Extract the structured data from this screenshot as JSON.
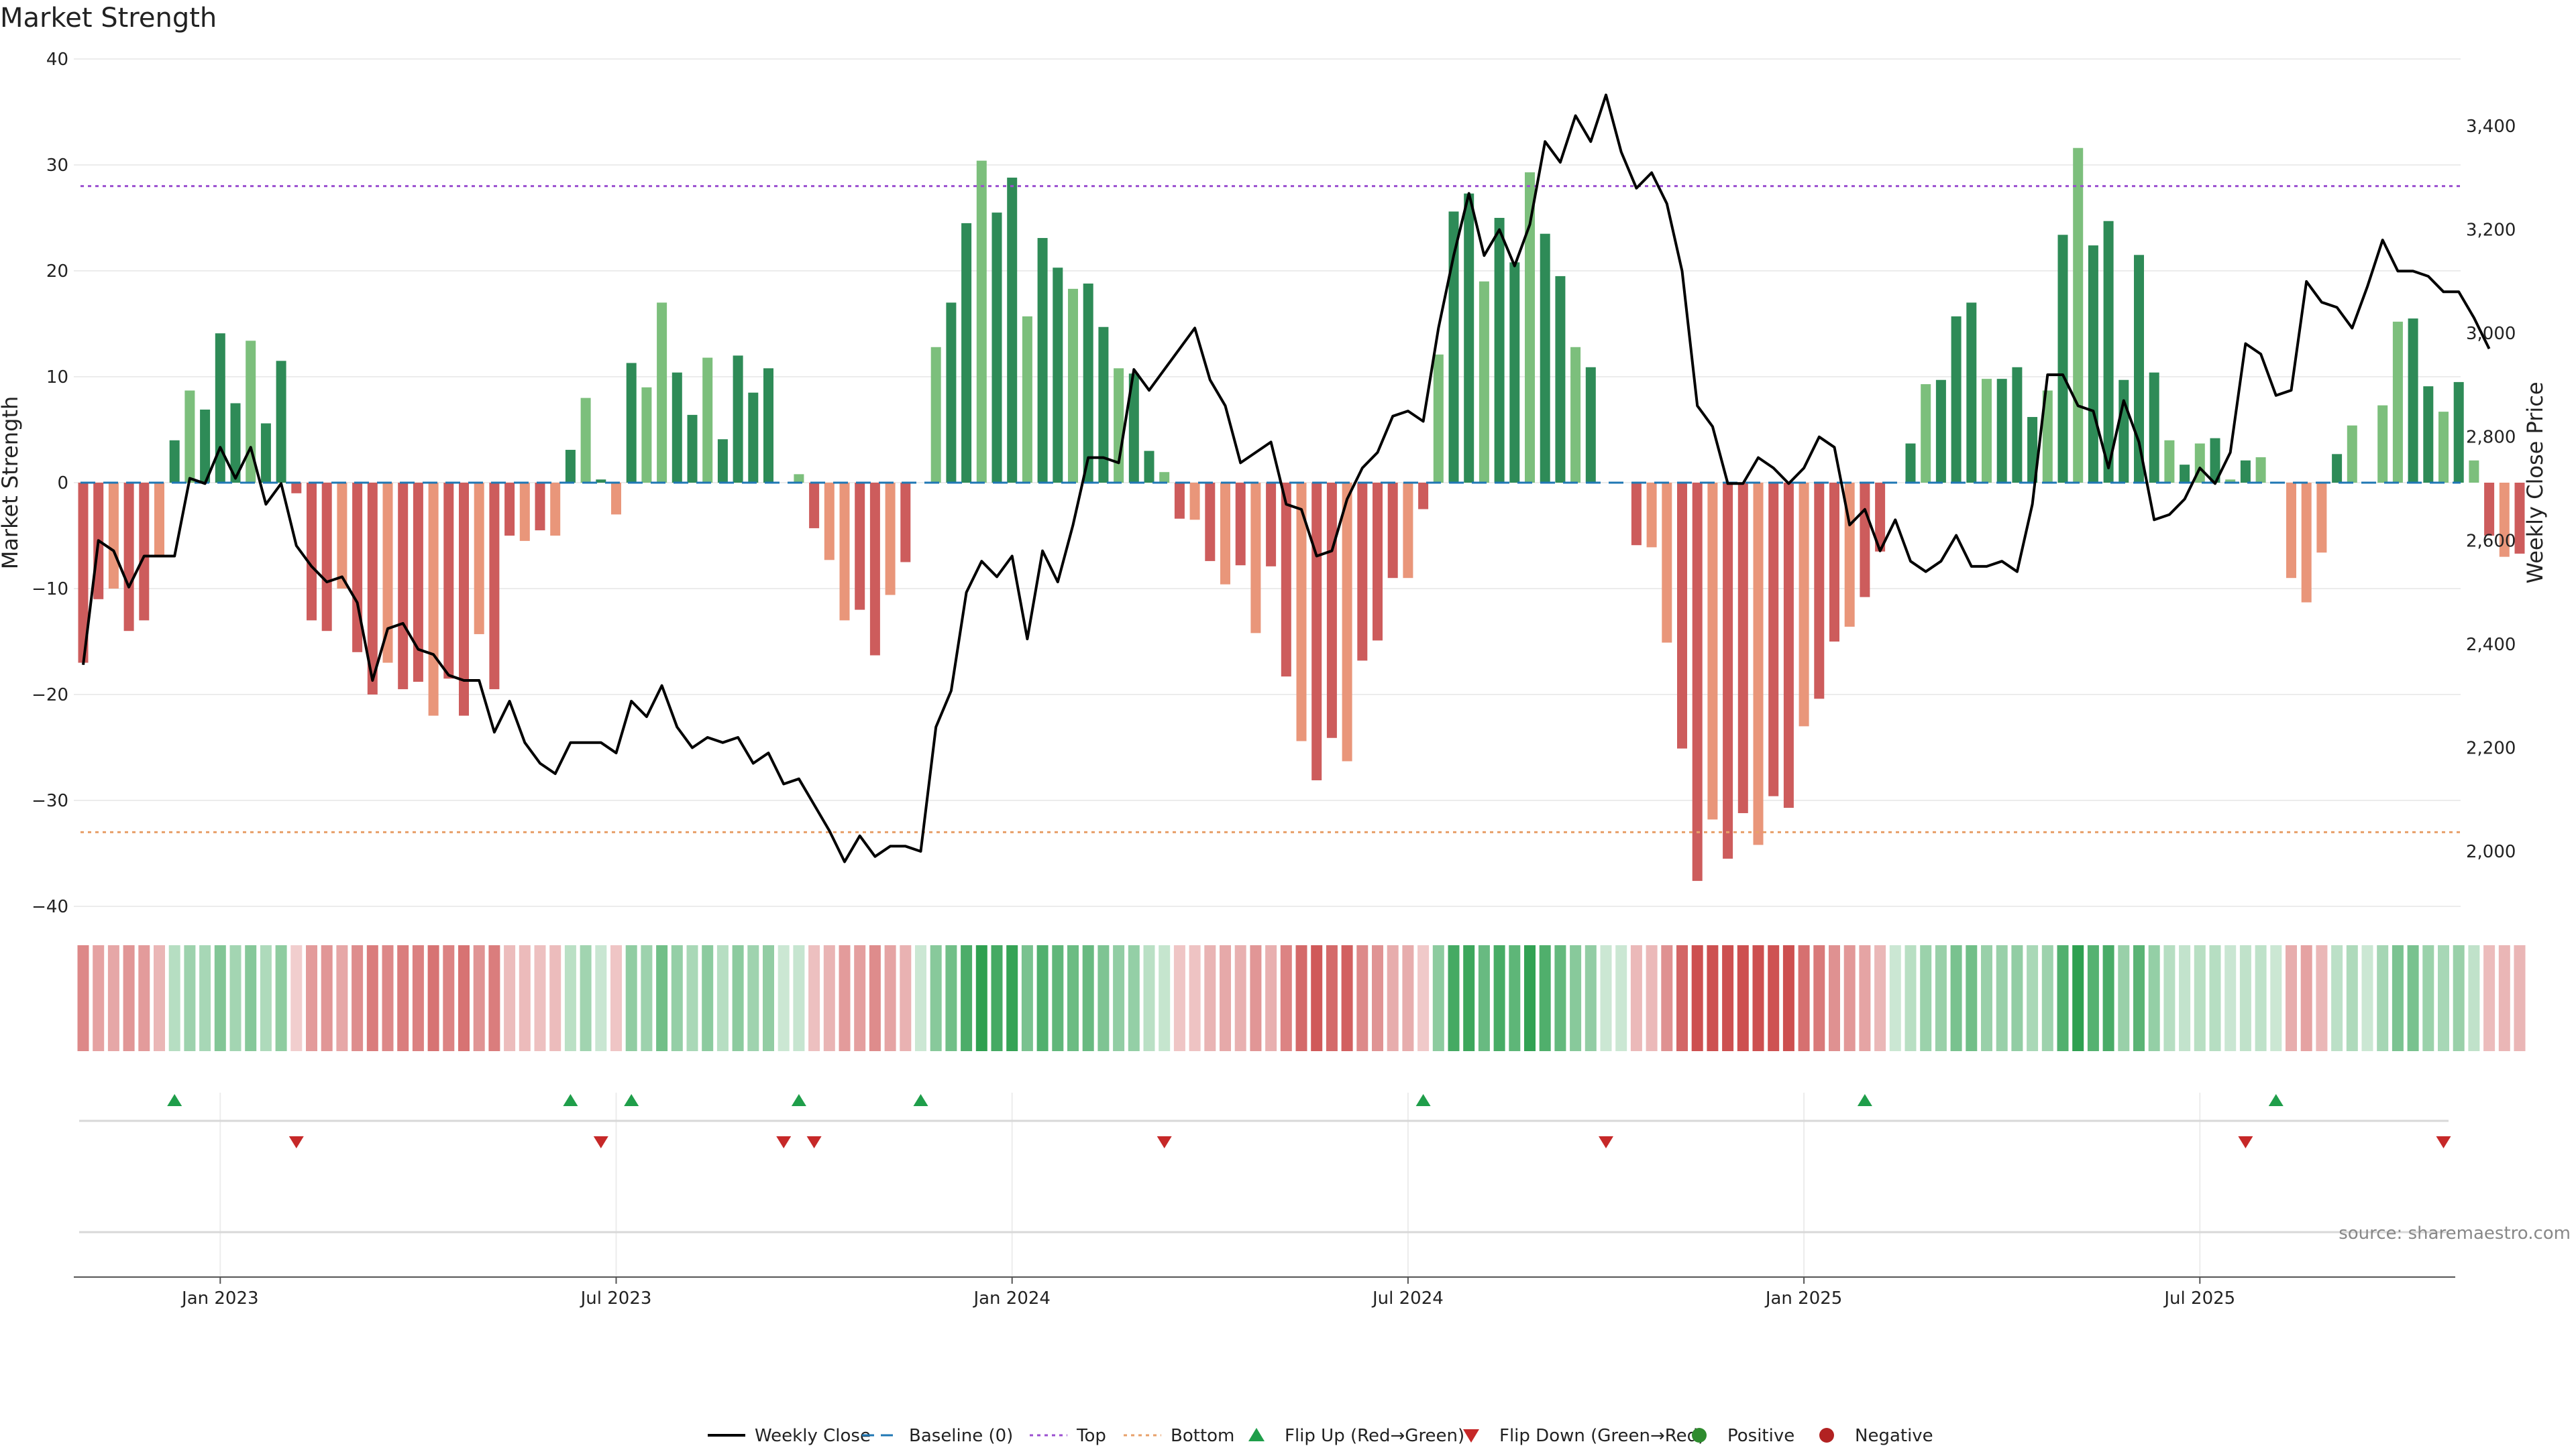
{
  "chart_data": {
    "type": "bar",
    "title": "Market Strength",
    "ylabel": "Market Strength",
    "y2label": "Weekly Close Price",
    "ylim": [
      -40,
      40
    ],
    "y2lim": [
      1890,
      3540
    ],
    "yticks": [
      40,
      30,
      20,
      10,
      0,
      -10,
      -20,
      -30,
      -40
    ],
    "yticks_labels": [
      "40",
      "30",
      "20",
      "10",
      "0",
      "−10",
      "−20",
      "−30",
      "−40"
    ],
    "y2ticks": [
      3400,
      3200,
      3000,
      2800,
      2600,
      2400,
      2200,
      2000
    ],
    "y2ticks_labels": [
      "3,400",
      "3,200",
      "3,000",
      "2,800",
      "2,600",
      "2,400",
      "2,200",
      "2,000"
    ],
    "xticks": [
      "Jan 2023",
      "Jul 2023",
      "Jan 2024",
      "Jul 2024",
      "Jan 2025",
      "Jul 2025"
    ],
    "xtick_week_index": [
      9,
      35,
      61,
      87,
      113,
      139
    ],
    "top_line": 28,
    "bottom_line": -33,
    "grid": true,
    "legend_position": "bottom-center",
    "source": "source: sharemaestro.com",
    "series": [
      {
        "name": "Market Strength",
        "values": [
          -17,
          -11,
          -10,
          -14,
          -13,
          -7,
          4,
          8.7,
          6.9,
          14.1,
          7.5,
          13.4,
          5.6,
          11.5,
          -1,
          -13,
          -14,
          -10,
          -16,
          -20,
          -17,
          -19.5,
          -18.8,
          -22,
          -18.5,
          -22,
          -14.3,
          -19.5,
          -5,
          -5.5,
          -4.5,
          -5,
          3.1,
          8,
          0.3,
          -3,
          11.3,
          9,
          17,
          10.4,
          6.4,
          11.8,
          4.1,
          12,
          8.5,
          10.8,
          0,
          0.8,
          -4.3,
          -7.3,
          -13,
          -12,
          -16.3,
          -10.6,
          -7.5,
          0,
          12.8,
          17,
          24.5,
          30.4,
          25.5,
          28.8,
          15.7,
          23.1,
          20.3,
          18.3,
          18.8,
          14.7,
          10.8,
          10.3,
          3,
          1,
          -3.4,
          -3.5,
          -7.4,
          -9.6,
          -7.8,
          -14.2,
          -7.9,
          -18.3,
          -24.4,
          -28.1,
          -24.1,
          -26.3,
          -16.8,
          -14.9,
          -9,
          -9,
          -2.5,
          12.1,
          25.6,
          27.3,
          19,
          25,
          20.8,
          29.3,
          23.5,
          19.5,
          12.8,
          10.9,
          0,
          0,
          -5.9,
          -6.1,
          -15.1,
          -25.1,
          -37.6,
          -31.8,
          -35.5,
          -31.2,
          -34.2,
          -29.6,
          -30.7,
          -23,
          -20.4,
          -15,
          -13.6,
          -10.8,
          -6.5,
          0,
          3.7,
          9.3,
          9.7,
          15.7,
          17,
          9.8,
          9.8,
          10.9,
          6.2,
          8.7,
          23.4,
          31.6,
          22.4,
          24.7,
          9.7,
          21.5,
          10.4,
          4,
          1.7,
          3.7,
          4.2,
          0.3,
          2.1,
          2.4,
          0,
          -9,
          -11.3,
          -6.6,
          2.7,
          5.4,
          0,
          7.3,
          15.2,
          15.5,
          9.1,
          6.7,
          9.5,
          2.1,
          -5,
          -7,
          -6.7
        ]
      },
      {
        "name": "Weekly Close",
        "values": [
          2360,
          2600,
          2580,
          2510,
          2570,
          2570,
          2570,
          2720,
          2710,
          2780,
          2720,
          2780,
          2670,
          2710,
          2590,
          2550,
          2520,
          2530,
          2480,
          2330,
          2430,
          2440,
          2390,
          2380,
          2340,
          2330,
          2330,
          2230,
          2290,
          2210,
          2170,
          2150,
          2210,
          2210,
          2210,
          2190,
          2290,
          2260,
          2320,
          2240,
          2200,
          2220,
          2210,
          2220,
          2170,
          2190,
          2130,
          2140,
          2090,
          2040,
          1980,
          2030,
          1990,
          2010,
          2010,
          2000,
          2240,
          2310,
          2500,
          2560,
          2530,
          2570,
          2410,
          2580,
          2520,
          2630,
          2760,
          2760,
          2750,
          2930,
          2890,
          2930,
          2970,
          3010,
          2910,
          2860,
          2750,
          2770,
          2790,
          2670,
          2660,
          2570,
          2580,
          2680,
          2740,
          2770,
          2840,
          2850,
          2830,
          3010,
          3150,
          3270,
          3150,
          3200,
          3130,
          3210,
          3370,
          3330,
          3420,
          3370,
          3460,
          3350,
          3280,
          3310,
          3250,
          3120,
          2860,
          2820,
          2710,
          2710,
          2760,
          2740,
          2710,
          2740,
          2800,
          2780,
          2630,
          2660,
          2580,
          2640,
          2560,
          2540,
          2560,
          2610,
          2550,
          2550,
          2560,
          2540,
          2670,
          2920,
          2920,
          2860,
          2850,
          2740,
          2870,
          2790,
          2640,
          2650,
          2680,
          2740,
          2710,
          2770,
          2980,
          2960,
          2880,
          2890,
          3100,
          3060,
          3050,
          3010,
          3090,
          3180,
          3120,
          3120,
          3110,
          3080,
          3080,
          3030,
          2970
        ]
      }
    ],
    "flip_up_week_index": [
      6,
      32,
      36,
      47,
      55,
      88,
      117,
      144
    ],
    "flip_down_week_index": [
      14,
      34,
      46,
      48,
      71,
      100,
      142,
      155
    ]
  },
  "legend": [
    {
      "label": "Weekly Close",
      "kind": "line",
      "color": "#000000"
    },
    {
      "label": "Baseline (0)",
      "kind": "dashed",
      "color": "#1f77b4"
    },
    {
      "label": "Top",
      "kind": "dotted",
      "color": "#9b4fd0"
    },
    {
      "label": "Bottom",
      "kind": "dotted",
      "color": "#e8a06a"
    },
    {
      "label": "Flip Up (Red→Green)",
      "kind": "triangle-up",
      "color": "#1f9e4a"
    },
    {
      "label": "Flip Down (Green→Red)",
      "kind": "triangle-down",
      "color": "#c62828"
    },
    {
      "label": "Positive",
      "kind": "circle",
      "color": "#2e8b2e"
    },
    {
      "label": "Negative",
      "kind": "circle",
      "color": "#b22222"
    }
  ],
  "colors": {
    "pos_strong": "#2e8b57",
    "pos_light": "#7cbf7c",
    "neg_strong": "#cd5c5c",
    "neg_light": "#e9967a",
    "line": "#000000"
  }
}
